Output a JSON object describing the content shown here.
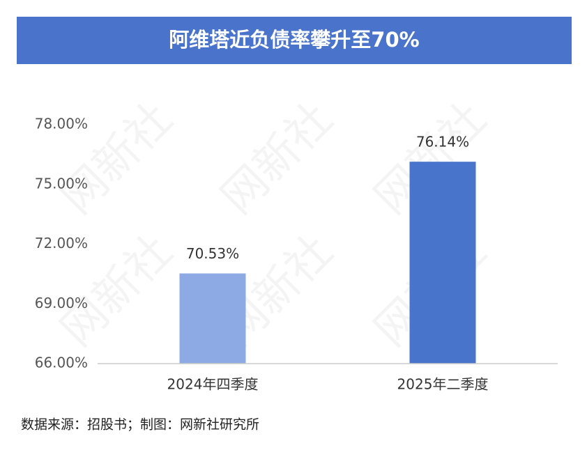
{
  "chart_data": {
    "type": "bar",
    "title": "阿维塔近负债率攀升至70%",
    "categories": [
      "2024年四季度",
      "2025年二季度"
    ],
    "values": [
      70.53,
      76.14
    ],
    "value_labels": [
      "70.53%",
      "76.14%"
    ],
    "colors": [
      "#8eaae4",
      "#4874cc"
    ],
    "ylim": [
      66,
      78
    ],
    "yticks": [
      {
        "value": 66,
        "label": "66.00%"
      },
      {
        "value": 69,
        "label": "69.00%"
      },
      {
        "value": 72,
        "label": "72.00%"
      },
      {
        "value": 75,
        "label": "75.00%"
      },
      {
        "value": 78,
        "label": "78.00%"
      }
    ],
    "grid": false,
    "source": "数据来源：招股书；制图：网新社研究所",
    "watermark": "网新社"
  }
}
